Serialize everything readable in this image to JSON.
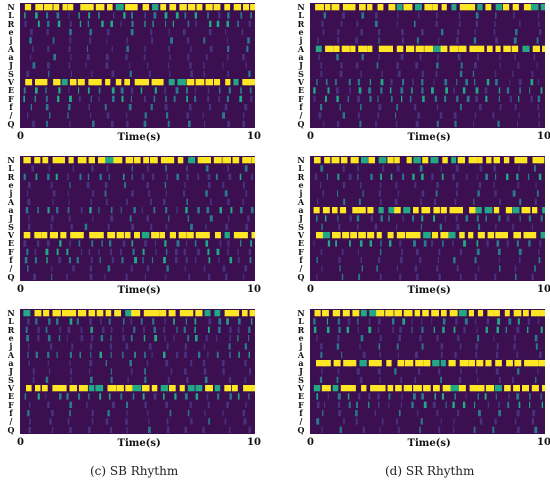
{
  "chart_data": {
    "type": "heatmap",
    "row_labels": [
      "N",
      "L",
      "R",
      "e",
      "j",
      "A",
      "a",
      "J",
      "S",
      "V",
      "E",
      "F",
      "f",
      "/",
      "Q"
    ],
    "x_label": "Time(s)",
    "x_ticks": [
      "0",
      "10"
    ],
    "xlim": [
      0,
      10
    ],
    "colors": {
      "background": "#3b0f50",
      "low": "#46327e",
      "mid": "#2a788e",
      "high": "#22a884",
      "peak": "#fde725"
    },
    "panels": [
      {
        "column": "c",
        "row": 0,
        "strong_rows": [
          "N",
          "V"
        ],
        "medium_rows": [
          "L",
          "R",
          "E",
          "F"
        ]
      },
      {
        "column": "c",
        "row": 1,
        "strong_rows": [
          "N",
          "V"
        ],
        "medium_rows": [
          "R",
          "a",
          "E",
          "F",
          "f"
        ]
      },
      {
        "column": "c",
        "row": 2,
        "strong_rows": [
          "N",
          "V"
        ],
        "medium_rows": [
          "L",
          "R",
          "e",
          "A",
          "E"
        ]
      },
      {
        "column": "d",
        "row": 0,
        "strong_rows": [
          "N",
          "A"
        ],
        "medium_rows": [
          "V",
          "E",
          "F"
        ]
      },
      {
        "column": "d",
        "row": 1,
        "strong_rows": [
          "N",
          "a",
          "V"
        ],
        "medium_rows": [
          "R",
          "J",
          "E"
        ]
      },
      {
        "column": "d",
        "row": 2,
        "strong_rows": [
          "N",
          "a",
          "V"
        ],
        "medium_rows": [
          "L",
          "R",
          "E",
          "F"
        ]
      }
    ]
  },
  "captions": {
    "c": "(c) SB Rhythm",
    "d": "(d) SR Rhythm"
  }
}
